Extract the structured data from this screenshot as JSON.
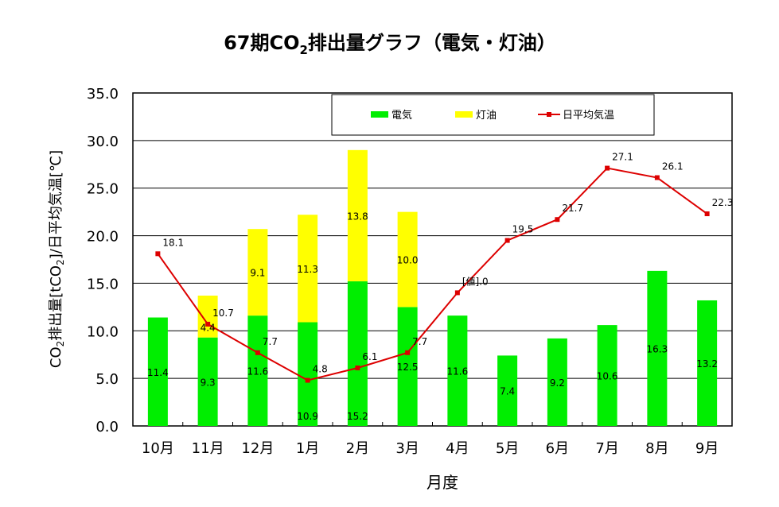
{
  "chart_data": {
    "type": "bar",
    "title": "67期CO2排出量グラフ（電気・灯油）",
    "title_parts": {
      "pre": "67期CO",
      "sub": "2",
      "post": "排出量グラフ（電気・灯油）"
    },
    "xlabel": "月度",
    "ylabel": "CO2排出量[tCO2]/日平均気温[℃]",
    "ylabel_parts": {
      "a": "CO",
      "s1": "2",
      "b": "排出量[tCO",
      "s2": "2",
      "c": "]/日平均気温[℃]"
    },
    "ylim": [
      0,
      35
    ],
    "yticks": [
      "0.0",
      "5.0",
      "10.0",
      "15.0",
      "20.0",
      "25.0",
      "30.0",
      "35.0"
    ],
    "grid": true,
    "legend_position": "top",
    "categories": [
      "10月",
      "11月",
      "12月",
      "1月",
      "2月",
      "3月",
      "4月",
      "5月",
      "6月",
      "7月",
      "8月",
      "9月"
    ],
    "series": [
      {
        "name": "電気",
        "kind": "stacked-bar",
        "color": "#00ee00",
        "values": [
          11.4,
          9.3,
          11.6,
          10.9,
          15.2,
          12.5,
          11.6,
          7.4,
          9.2,
          10.6,
          16.3,
          13.2
        ]
      },
      {
        "name": "灯油",
        "kind": "stacked-bar",
        "color": "#ffff00",
        "values": [
          null,
          4.4,
          9.1,
          11.3,
          13.8,
          10.0,
          null,
          null,
          null,
          null,
          null,
          null
        ]
      },
      {
        "name": "日平均気温",
        "kind": "line",
        "color": "#dd0000",
        "values": [
          18.1,
          10.7,
          7.7,
          4.8,
          6.1,
          7.7,
          14.0,
          19.5,
          21.7,
          27.1,
          26.1,
          22.3
        ],
        "labels": [
          "18.1",
          "10.7",
          "7.7",
          "4.8",
          "6.1",
          "7.7",
          "[値].0",
          "19.5",
          "21.7",
          "27.1",
          "26.1",
          "22.3"
        ]
      }
    ]
  }
}
